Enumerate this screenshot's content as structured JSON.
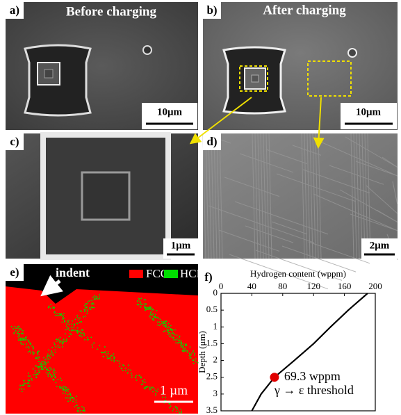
{
  "panels": [
    {
      "label": "a)",
      "title": "Before charging",
      "scale": "10μm"
    },
    {
      "label": "b)",
      "title": "After charging",
      "scale": "10μm"
    },
    {
      "label": "c)",
      "scale": "1μm"
    },
    {
      "label": "d)",
      "scale": "2μm"
    },
    {
      "label": "e)",
      "annotation": "indent",
      "legend": [
        {
          "name": "FCC",
          "color": "#ff0000"
        },
        {
          "name": "HCP",
          "color": "#00dd00"
        }
      ],
      "scale": "1 µm"
    },
    {
      "label": "f)"
    }
  ],
  "chart_data": {
    "type": "line",
    "x_label": "Hydrogen content (wppm)",
    "y_label": "Depth (μm)",
    "x": [
      190,
      165,
      142,
      120,
      95,
      69.3,
      52,
      40
    ],
    "values": [
      0,
      0.5,
      1,
      1.5,
      2,
      2.5,
      3,
      3.5
    ],
    "color": "#000000",
    "xlim": [
      0,
      200
    ],
    "xticks": [
      0,
      40,
      80,
      120,
      160,
      200
    ],
    "ylim": [
      0,
      3.5
    ],
    "yticks": [
      0,
      0.5,
      1,
      1.5,
      2,
      2.5,
      3,
      3.5
    ],
    "y_inverted": true,
    "x_axis_position": "top",
    "marker": {
      "x": 69.3,
      "y": 2.5,
      "color": "#e00000"
    },
    "annotations": [
      "69.3 wppm",
      "γ → ε threshold"
    ]
  }
}
